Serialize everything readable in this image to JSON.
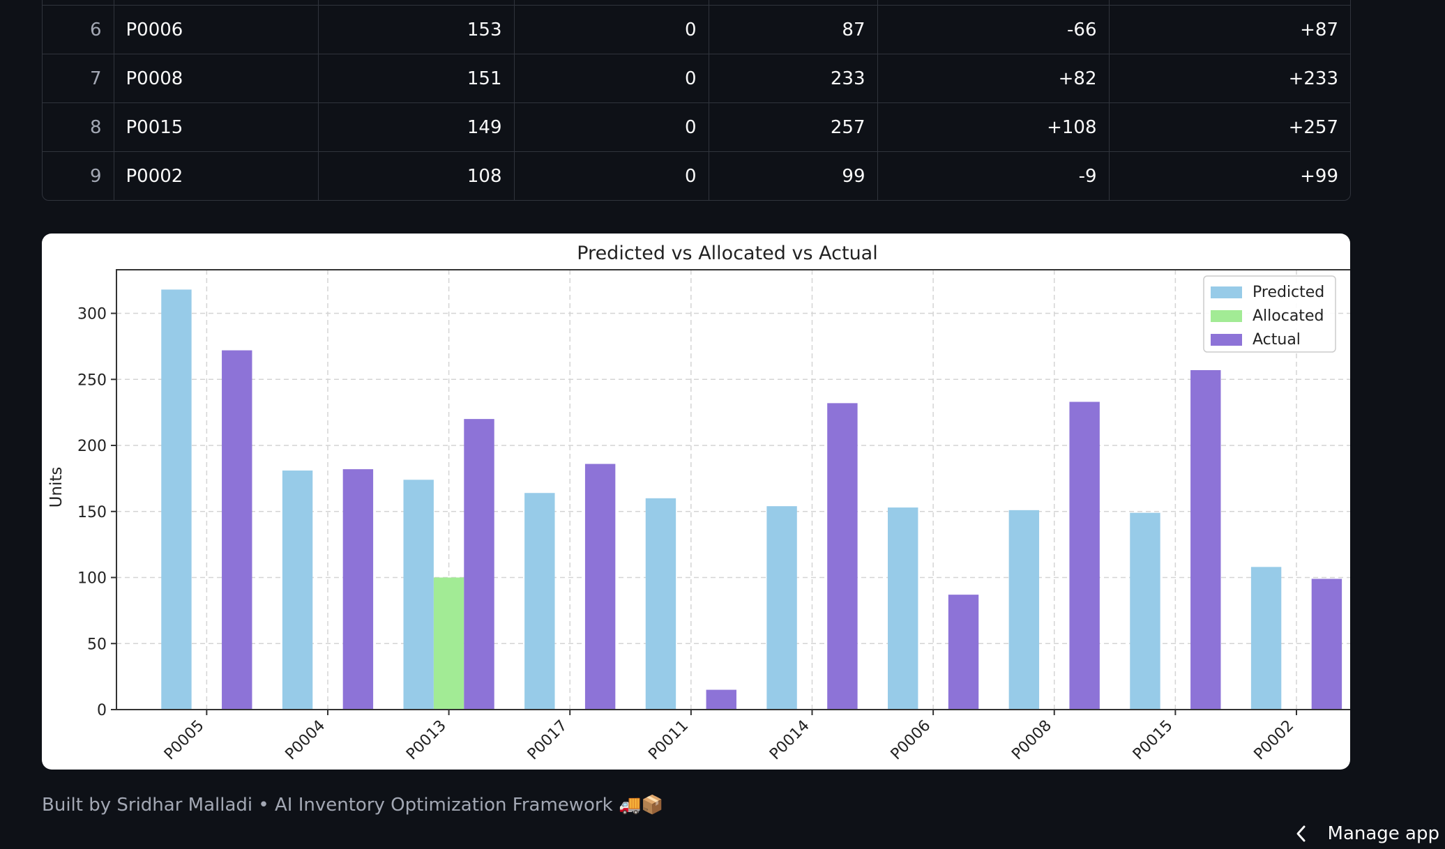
{
  "table": {
    "rows": [
      {
        "index": "",
        "product": "",
        "predicted": "",
        "allocated": "",
        "actual": "",
        "diff_pred": "",
        "diff_alloc": ""
      },
      {
        "index": "6",
        "product": "P0006",
        "predicted": "153",
        "allocated": "0",
        "actual": "87",
        "diff_pred": "-66",
        "diff_alloc": "+87"
      },
      {
        "index": "7",
        "product": "P0008",
        "predicted": "151",
        "allocated": "0",
        "actual": "233",
        "diff_pred": "+82",
        "diff_alloc": "+233"
      },
      {
        "index": "8",
        "product": "P0015",
        "predicted": "149",
        "allocated": "0",
        "actual": "257",
        "diff_pred": "+108",
        "diff_alloc": "+257"
      },
      {
        "index": "9",
        "product": "P0002",
        "predicted": "108",
        "allocated": "0",
        "actual": "99",
        "diff_pred": "-9",
        "diff_alloc": "+99"
      }
    ]
  },
  "chart_data": {
    "type": "bar",
    "title": "Predicted vs Allocated vs Actual",
    "ylabel": "Units",
    "xlabel": "",
    "categories": [
      "P0005",
      "P0004",
      "P0013",
      "P0017",
      "P0011",
      "P0014",
      "P0006",
      "P0008",
      "P0015",
      "P0002"
    ],
    "series": [
      {
        "name": "Predicted",
        "color": "#97cbe8",
        "values": [
          318,
          181,
          174,
          164,
          160,
          154,
          153,
          151,
          149,
          108
        ]
      },
      {
        "name": "Allocated",
        "color": "#a2eb95",
        "values": [
          0,
          0,
          100,
          0,
          0,
          0,
          0,
          0,
          0,
          0
        ]
      },
      {
        "name": "Actual",
        "color": "#8d73d7",
        "values": [
          272,
          182,
          220,
          186,
          15,
          232,
          87,
          233,
          257,
          99
        ]
      }
    ],
    "yticks": [
      0,
      50,
      100,
      150,
      200,
      250,
      300
    ],
    "ylim": [
      0,
      333
    ],
    "grid": true,
    "legend_position": "top-right"
  },
  "footer": {
    "text": "Built by Sridhar Malladi • AI Inventory Optimization Framework 🚚📦"
  },
  "manage_app": {
    "label": "Manage app",
    "icon": "chevron-left-icon"
  }
}
